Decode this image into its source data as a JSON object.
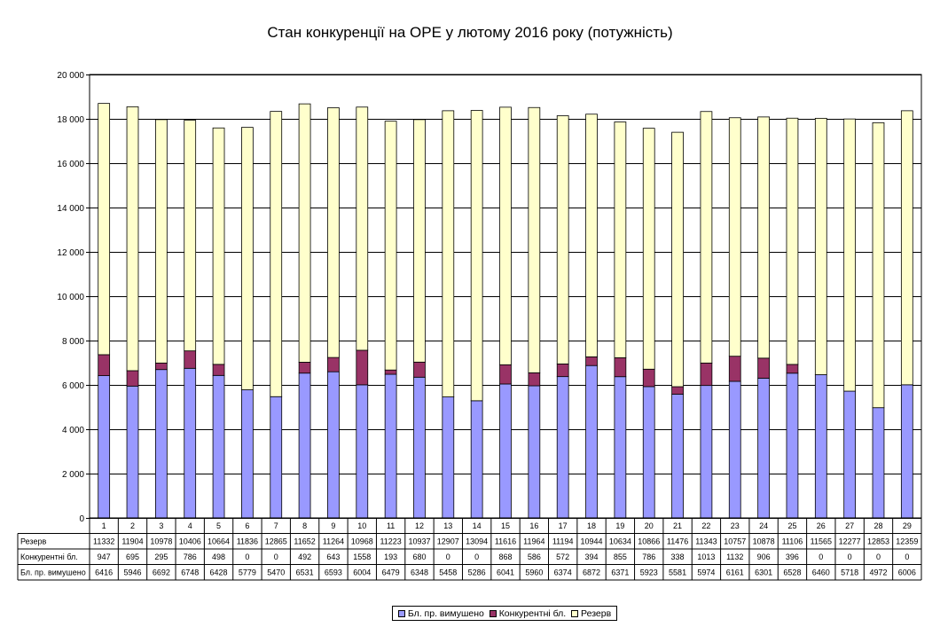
{
  "chart_data": {
    "type": "bar",
    "stacked": true,
    "title": "Стан конкуренції на ОРЕ  у лютому 2016 року (потужність)",
    "xlabel": "",
    "ylabel": "",
    "ylim": [
      0,
      20000
    ],
    "yticks": [
      0,
      2000,
      4000,
      6000,
      8000,
      10000,
      12000,
      14000,
      16000,
      18000,
      20000
    ],
    "ytick_labels": [
      "0",
      "2 000",
      "4 000",
      "6 000",
      "8 000",
      "10 000",
      "12 000",
      "14 000",
      "16 000",
      "18 000",
      "20 000"
    ],
    "grid": true,
    "legend_position": "bottom",
    "data_table": true,
    "categories": [
      "1",
      "2",
      "3",
      "4",
      "5",
      "6",
      "7",
      "8",
      "9",
      "10",
      "11",
      "12",
      "13",
      "14",
      "15",
      "16",
      "17",
      "18",
      "19",
      "20",
      "21",
      "22",
      "23",
      "24",
      "25",
      "26",
      "27",
      "28",
      "29"
    ],
    "series": [
      {
        "name": "Бл. пр. вимушено",
        "color": "#9999ff",
        "values": [
          6416,
          5946,
          6692,
          6748,
          6428,
          5779,
          5470,
          6531,
          6593,
          6004,
          6479,
          6348,
          5458,
          5286,
          6041,
          5960,
          6374,
          6872,
          6371,
          5923,
          5581,
          5974,
          6161,
          6301,
          6528,
          6460,
          5718,
          4972,
          6006
        ]
      },
      {
        "name": "Конкурентні бл.",
        "color": "#993366",
        "values": [
          947,
          695,
          295,
          786,
          498,
          0,
          0,
          492,
          643,
          1558,
          193,
          680,
          0,
          0,
          868,
          586,
          572,
          394,
          855,
          786,
          338,
          1013,
          1132,
          906,
          396,
          0,
          0,
          0,
          0
        ]
      },
      {
        "name": "Резерв",
        "color": "#ffffcc",
        "values": [
          11332,
          11904,
          10978,
          10406,
          10664,
          11836,
          12865,
          11652,
          11264,
          10968,
          11223,
          10937,
          12907,
          13094,
          11616,
          11964,
          11194,
          10944,
          10634,
          10866,
          11476,
          11343,
          10757,
          10878,
          11106,
          11565,
          12277,
          12853,
          12359
        ]
      }
    ],
    "table_row_order": [
      2,
      1,
      0
    ]
  },
  "colors": {
    "plot_bg": "#ffffff",
    "grid": "#000000",
    "bar_stroke": "#000000"
  }
}
